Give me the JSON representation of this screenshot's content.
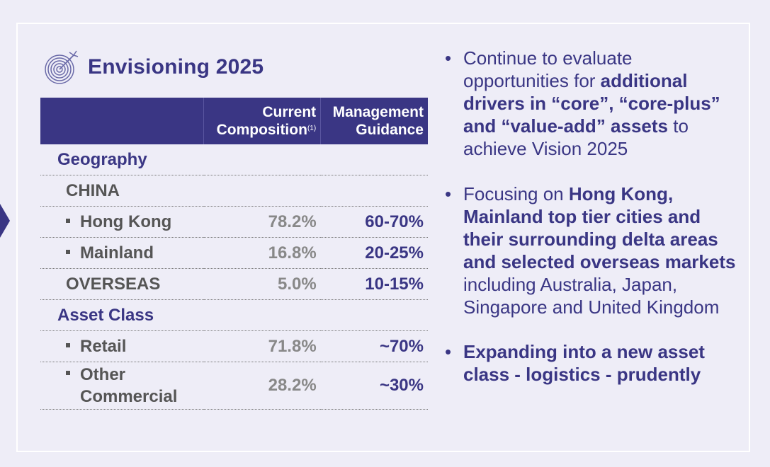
{
  "title": "Envisioning 2025",
  "table": {
    "headers": {
      "current_line1": "Current",
      "current_line2": "Composition",
      "current_footnote": "(1)",
      "guidance_line1": "Management",
      "guidance_line2": "Guidance"
    },
    "rows": [
      {
        "label": "Geography",
        "current": "",
        "guidance": ""
      },
      {
        "label": "CHINA",
        "current": "",
        "guidance": ""
      },
      {
        "label": "Hong Kong",
        "current": "78.2%",
        "guidance": "60-70%"
      },
      {
        "label": "Mainland",
        "current": "16.8%",
        "guidance": "20-25%"
      },
      {
        "label": "OVERSEAS",
        "current": "5.0%",
        "guidance": "10-15%"
      },
      {
        "label": "Asset Class",
        "current": "",
        "guidance": ""
      },
      {
        "label": "Retail",
        "current": "71.8%",
        "guidance": "~70%"
      },
      {
        "label_line1": "Other",
        "label_line2": "Commercial",
        "current": "28.2%",
        "guidance": "~30%"
      }
    ]
  },
  "bullets": [
    {
      "t1": "Continue to evaluate opportunities for ",
      "b1": "additional drivers in “core”, “core-plus” and “value-add” assets",
      "t2": " to achieve Vision 2025"
    },
    {
      "t1": "Focusing on ",
      "b1": "Hong Kong, Mainland top tier cities and their surrounding delta areas and selected overseas markets",
      "t2": " including Australia, Japan, Singapore and United Kingdom"
    },
    {
      "b1": "Expanding into a new asset class - logistics - prudently"
    }
  ]
}
